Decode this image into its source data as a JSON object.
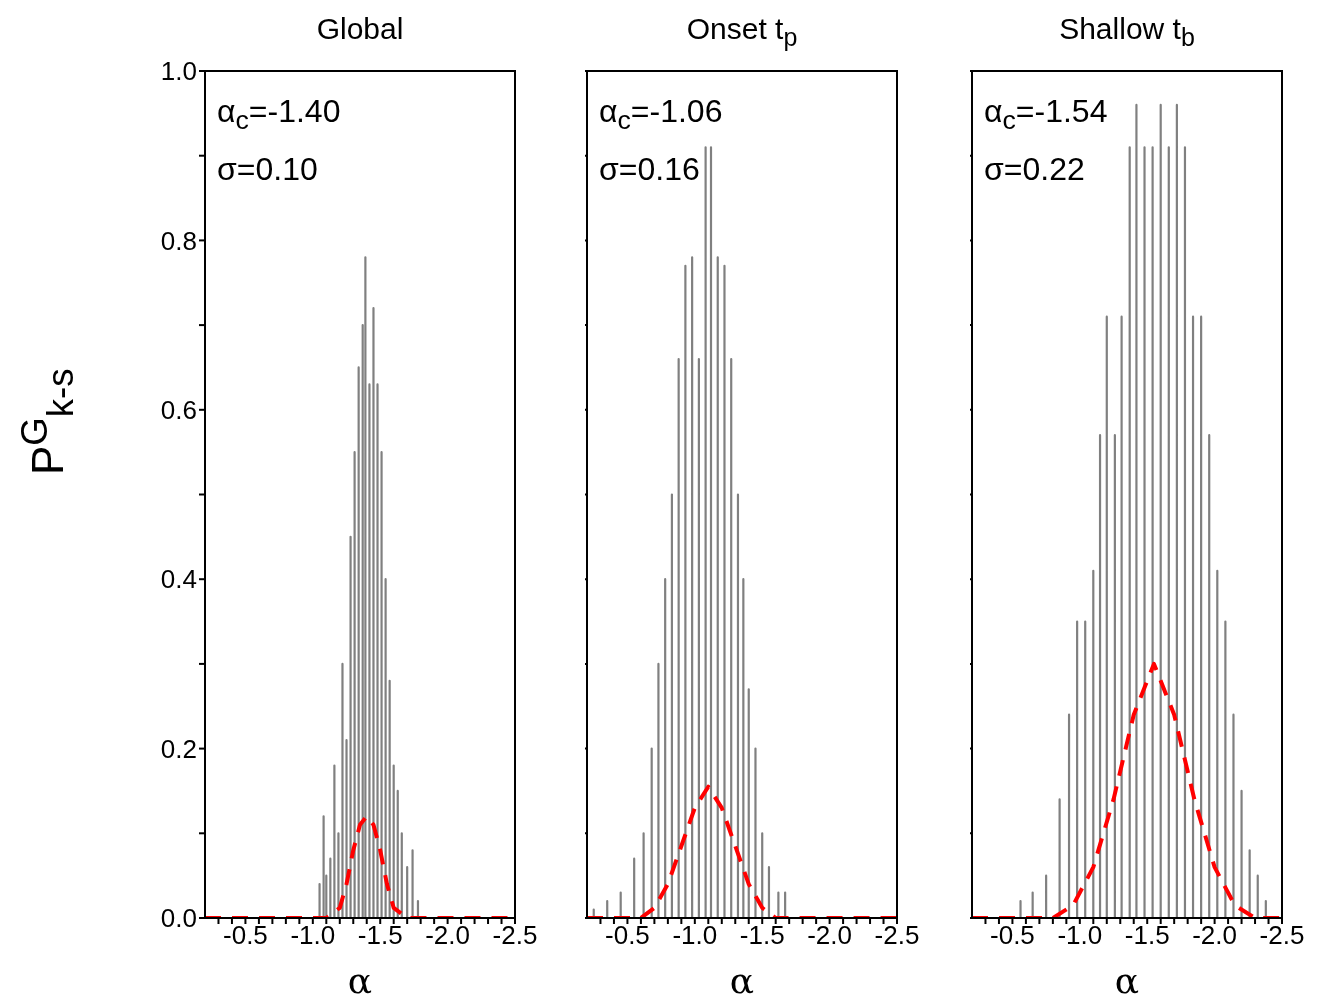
{
  "chart_data": [
    {
      "type": "line",
      "title": "Global",
      "xlabel": "α",
      "ylabel": "P$^{G}$$_{k-s}$",
      "annotations": [
        "α$_{c}$=-1.40",
        "σ=0.10"
      ],
      "xlim": [
        -0.2,
        -2.5
      ],
      "xticks": [
        {
          "value": -0.3,
          "label": null
        },
        {
          "value": -0.4,
          "label": null
        },
        {
          "value": -0.5,
          "label": "-0.5"
        },
        {
          "value": -0.6,
          "label": null
        },
        {
          "value": -0.7,
          "label": null
        },
        {
          "value": -0.8,
          "label": null
        },
        {
          "value": -0.9,
          "label": null
        },
        {
          "value": -1.0,
          "label": "-1.0"
        },
        {
          "value": -1.1,
          "label": null
        },
        {
          "value": -1.2,
          "label": null
        },
        {
          "value": -1.3,
          "label": null
        },
        {
          "value": -1.4,
          "label": null
        },
        {
          "value": -1.5,
          "label": "-1.5"
        },
        {
          "value": -1.6,
          "label": null
        },
        {
          "value": -1.7,
          "label": null
        },
        {
          "value": -1.8,
          "label": null
        },
        {
          "value": -1.9,
          "label": null
        },
        {
          "value": -2.0,
          "label": "-2.0"
        },
        {
          "value": -2.1,
          "label": null
        },
        {
          "value": -2.2,
          "label": null
        },
        {
          "value": -2.3,
          "label": null
        },
        {
          "value": -2.4,
          "label": null
        },
        {
          "value": -2.5,
          "label": "-2.5"
        }
      ],
      "ylim": [
        0,
        1
      ],
      "yticks": [
        {
          "value": 0,
          "label": "0.0"
        },
        {
          "value": 0.1,
          "label": null
        },
        {
          "value": 0.2,
          "label": "0.2"
        },
        {
          "value": 0.3,
          "label": null
        },
        {
          "value": 0.4,
          "label": "0.4"
        },
        {
          "value": 0.5,
          "label": null
        },
        {
          "value": 0.6,
          "label": "0.6"
        },
        {
          "value": 0.7,
          "label": null
        },
        {
          "value": 0.8,
          "label": "0.8"
        },
        {
          "value": 0.9,
          "label": null
        },
        {
          "value": 1,
          "label": "1.0"
        }
      ],
      "series": [
        {
          "type": "line",
          "color": "#808080",
          "line_style": "solid",
          "x": [
            -1.05,
            -1.05,
            -1.05,
            -1.08,
            -1.08,
            -1.08,
            -1.1,
            -1.1,
            -1.1,
            -1.13,
            -1.13,
            -1.13,
            -1.16,
            -1.16,
            -1.16,
            -1.19,
            -1.19,
            -1.19,
            -1.22,
            -1.22,
            -1.22,
            -1.25,
            -1.25,
            -1.25,
            -1.28,
            -1.28,
            -1.28,
            -1.31,
            -1.31,
            -1.31,
            -1.34,
            -1.34,
            -1.34,
            -1.37,
            -1.37,
            -1.37,
            -1.39,
            -1.39,
            -1.39,
            -1.42,
            -1.42,
            -1.42,
            -1.45,
            -1.45,
            -1.45,
            -1.48,
            -1.48,
            -1.48,
            -1.51,
            -1.51,
            -1.51,
            -1.54,
            -1.54,
            -1.54,
            -1.57,
            -1.57,
            -1.57,
            -1.6,
            -1.6,
            -1.6,
            -1.63,
            -1.63,
            -1.63,
            -1.66,
            -1.66,
            -1.66,
            -1.7,
            -1.7,
            -1.7,
            -1.74,
            -1.74,
            -1.74,
            -1.78,
            -1.78,
            -1.78
          ],
          "values": [
            0,
            0.04,
            0,
            0,
            0.12,
            0,
            0,
            0.05,
            0,
            0,
            0.07,
            0,
            0,
            0.18,
            0,
            0,
            0.1,
            0,
            0,
            0.3,
            0,
            0,
            0.21,
            0,
            0,
            0.45,
            0,
            0,
            0.55,
            0,
            0,
            0.65,
            0,
            0,
            0.7,
            0,
            0,
            0.78,
            0,
            0,
            0.63,
            0,
            0,
            0.72,
            0,
            0,
            0.63,
            0,
            0,
            0.55,
            0,
            0,
            0.4,
            0,
            0,
            0.28,
            0,
            0,
            0.18,
            0,
            0,
            0.15,
            0,
            0,
            0.1,
            0,
            0,
            0.06,
            0,
            0,
            0.08,
            0,
            0,
            0.02,
            0
          ]
        },
        {
          "type": "line",
          "color": "#ff0000",
          "line_style": "dashed",
          "x": [
            -0.2,
            -1.1,
            -1.2,
            -1.25,
            -1.3,
            -1.35,
            -1.4,
            -1.45,
            -1.5,
            -1.55,
            -1.6,
            -1.7,
            -2.5
          ],
          "values": [
            0,
            0,
            0.012,
            0.04,
            0.08,
            0.11,
            0.12,
            0.11,
            0.08,
            0.04,
            0.012,
            0,
            0
          ]
        }
      ]
    },
    {
      "type": "line",
      "title": "Onset t$_{p}$",
      "xlabel": "α",
      "annotations": [
        "α$_{c}$=-1.06",
        "σ=0.16"
      ],
      "tick_labels": "x",
      "xlim": [
        -0.2,
        -2.5
      ],
      "xticks": [
        {
          "value": -0.3,
          "label": null
        },
        {
          "value": -0.4,
          "label": null
        },
        {
          "value": -0.5,
          "label": "-0.5"
        },
        {
          "value": -0.6,
          "label": null
        },
        {
          "value": -0.7,
          "label": null
        },
        {
          "value": -0.8,
          "label": null
        },
        {
          "value": -0.9,
          "label": null
        },
        {
          "value": -1.0,
          "label": "-1.0"
        },
        {
          "value": -1.1,
          "label": null
        },
        {
          "value": -1.2,
          "label": null
        },
        {
          "value": -1.3,
          "label": null
        },
        {
          "value": -1.4,
          "label": null
        },
        {
          "value": -1.5,
          "label": "-1.5"
        },
        {
          "value": -1.6,
          "label": null
        },
        {
          "value": -1.7,
          "label": null
        },
        {
          "value": -1.8,
          "label": null
        },
        {
          "value": -1.9,
          "label": null
        },
        {
          "value": -2.0,
          "label": "-2.0"
        },
        {
          "value": -2.1,
          "label": null
        },
        {
          "value": -2.2,
          "label": null
        },
        {
          "value": -2.3,
          "label": null
        },
        {
          "value": -2.4,
          "label": null
        },
        {
          "value": -2.5,
          "label": "-2.5"
        }
      ],
      "ylim": [
        0,
        1
      ],
      "yticks": [
        {
          "value": 0,
          "label": null
        },
        {
          "value": 0.1,
          "label": null
        },
        {
          "value": 0.2,
          "label": null
        },
        {
          "value": 0.3,
          "label": null
        },
        {
          "value": 0.4,
          "label": null
        },
        {
          "value": 0.5,
          "label": null
        },
        {
          "value": 0.6,
          "label": null
        },
        {
          "value": 0.7,
          "label": null
        },
        {
          "value": 0.8,
          "label": null
        },
        {
          "value": 0.9,
          "label": null
        },
        {
          "value": 1,
          "label": null
        }
      ],
      "series": [
        {
          "type": "line",
          "color": "#808080",
          "line_style": "solid",
          "x": [
            -0.25,
            -0.25,
            -0.25,
            -0.35,
            -0.35,
            -0.35,
            -0.45,
            -0.45,
            -0.45,
            -0.55,
            -0.55,
            -0.55,
            -0.62,
            -0.62,
            -0.62,
            -0.68,
            -0.68,
            -0.68,
            -0.73,
            -0.73,
            -0.73,
            -0.78,
            -0.78,
            -0.78,
            -0.83,
            -0.83,
            -0.83,
            -0.88,
            -0.88,
            -0.88,
            -0.93,
            -0.93,
            -0.93,
            -0.98,
            -0.98,
            -0.98,
            -1.03,
            -1.03,
            -1.03,
            -1.08,
            -1.08,
            -1.08,
            -1.12,
            -1.12,
            -1.12,
            -1.17,
            -1.17,
            -1.17,
            -1.22,
            -1.22,
            -1.22,
            -1.27,
            -1.27,
            -1.27,
            -1.32,
            -1.32,
            -1.32,
            -1.36,
            -1.36,
            -1.36,
            -1.4,
            -1.4,
            -1.4,
            -1.45,
            -1.45,
            -1.45,
            -1.5,
            -1.5,
            -1.5,
            -1.55,
            -1.55,
            -1.55,
            -1.62,
            -1.62,
            -1.62,
            -1.67,
            -1.67,
            -1.67
          ],
          "values": [
            0,
            0.01,
            0,
            0,
            0.02,
            0,
            0,
            0.03,
            0,
            0,
            0.07,
            0,
            0,
            0.1,
            0,
            0,
            0.2,
            0,
            0,
            0.3,
            0,
            0,
            0.4,
            0,
            0,
            0.5,
            0,
            0,
            0.66,
            0,
            0,
            0.77,
            0,
            0,
            0.78,
            0,
            0,
            0.66,
            0,
            0,
            0.91,
            0,
            0,
            0.91,
            0,
            0,
            0.78,
            0,
            0,
            0.77,
            0,
            0,
            0.66,
            0,
            0,
            0.5,
            0,
            0,
            0.4,
            0,
            0,
            0.27,
            0,
            0,
            0.2,
            0,
            0,
            0.1,
            0,
            0,
            0.06,
            0,
            0,
            0.03,
            0,
            0,
            0.03,
            0
          ]
        },
        {
          "type": "line",
          "color": "#ff0000",
          "line_style": "dashed",
          "x": [
            -0.2,
            -0.6,
            -0.7,
            -0.8,
            -0.9,
            -1.0,
            -1.1,
            -1.2,
            -1.3,
            -1.4,
            -1.5,
            -1.6,
            -2.5
          ],
          "values": [
            0,
            0,
            0.012,
            0.04,
            0.085,
            0.13,
            0.155,
            0.13,
            0.085,
            0.04,
            0.012,
            0,
            0
          ]
        }
      ]
    },
    {
      "type": "line",
      "title": "Shallow t$_{b}$",
      "xlabel": "α",
      "annotations": [
        "α$_{c}$=-1.54",
        "σ=0.22"
      ],
      "tick_labels": "x",
      "xlim": [
        -0.2,
        -2.5
      ],
      "xticks": [
        {
          "value": -0.3,
          "label": null
        },
        {
          "value": -0.4,
          "label": null
        },
        {
          "value": -0.5,
          "label": "-0.5"
        },
        {
          "value": -0.6,
          "label": null
        },
        {
          "value": -0.7,
          "label": null
        },
        {
          "value": -0.8,
          "label": null
        },
        {
          "value": -0.9,
          "label": null
        },
        {
          "value": -1.0,
          "label": "-1.0"
        },
        {
          "value": -1.1,
          "label": null
        },
        {
          "value": -1.2,
          "label": null
        },
        {
          "value": -1.3,
          "label": null
        },
        {
          "value": -1.4,
          "label": null
        },
        {
          "value": -1.5,
          "label": "-1.5"
        },
        {
          "value": -1.6,
          "label": null
        },
        {
          "value": -1.7,
          "label": null
        },
        {
          "value": -1.8,
          "label": null
        },
        {
          "value": -1.9,
          "label": null
        },
        {
          "value": -2.0,
          "label": "-2.0"
        },
        {
          "value": -2.1,
          "label": null
        },
        {
          "value": -2.2,
          "label": null
        },
        {
          "value": -2.3,
          "label": null
        },
        {
          "value": -2.4,
          "label": null
        },
        {
          "value": -2.5,
          "label": "-2.5"
        }
      ],
      "ylim": [
        0,
        1
      ],
      "yticks": [
        {
          "value": 0,
          "label": null
        },
        {
          "value": 0.1,
          "label": null
        },
        {
          "value": 0.2,
          "label": null
        },
        {
          "value": 0.3,
          "label": null
        },
        {
          "value": 0.4,
          "label": null
        },
        {
          "value": 0.5,
          "label": null
        },
        {
          "value": 0.6,
          "label": null
        },
        {
          "value": 0.7,
          "label": null
        },
        {
          "value": 0.8,
          "label": null
        },
        {
          "value": 0.9,
          "label": null
        },
        {
          "value": 1,
          "label": null
        }
      ],
      "series": [
        {
          "type": "line",
          "color": "#808080",
          "line_style": "solid",
          "x": [
            -0.56,
            -0.56,
            -0.56,
            -0.65,
            -0.65,
            -0.65,
            -0.75,
            -0.75,
            -0.75,
            -0.85,
            -0.85,
            -0.85,
            -0.92,
            -0.92,
            -0.92,
            -0.98,
            -0.98,
            -0.98,
            -1.04,
            -1.04,
            -1.04,
            -1.1,
            -1.1,
            -1.1,
            -1.15,
            -1.15,
            -1.15,
            -1.2,
            -1.2,
            -1.2,
            -1.26,
            -1.26,
            -1.26,
            -1.31,
            -1.31,
            -1.31,
            -1.37,
            -1.37,
            -1.37,
            -1.42,
            -1.42,
            -1.42,
            -1.48,
            -1.48,
            -1.48,
            -1.54,
            -1.54,
            -1.54,
            -1.6,
            -1.6,
            -1.6,
            -1.66,
            -1.66,
            -1.66,
            -1.72,
            -1.72,
            -1.72,
            -1.78,
            -1.78,
            -1.78,
            -1.84,
            -1.84,
            -1.84,
            -1.9,
            -1.9,
            -1.9,
            -1.96,
            -1.96,
            -1.96,
            -2.02,
            -2.02,
            -2.02,
            -2.08,
            -2.08,
            -2.08,
            -2.14,
            -2.14,
            -2.14,
            -2.2,
            -2.2,
            -2.2,
            -2.26,
            -2.26,
            -2.26,
            -2.32,
            -2.32,
            -2.32,
            -2.38,
            -2.38,
            -2.38
          ],
          "values": [
            0,
            0.02,
            0,
            0,
            0.03,
            0,
            0,
            0.05,
            0,
            0,
            0.14,
            0,
            0,
            0.24,
            0,
            0,
            0.35,
            0,
            0,
            0.35,
            0,
            0,
            0.41,
            0,
            0,
            0.57,
            0,
            0,
            0.71,
            0,
            0,
            0.57,
            0,
            0,
            0.71,
            0,
            0,
            0.91,
            0,
            0,
            0.96,
            0,
            0,
            0.91,
            0,
            0,
            0.91,
            0,
            0,
            0.96,
            0,
            0,
            0.91,
            0,
            0,
            0.96,
            0,
            0,
            0.91,
            0,
            0,
            0.71,
            0,
            0,
            0.71,
            0,
            0,
            0.57,
            0,
            0,
            0.41,
            0,
            0,
            0.35,
            0,
            0,
            0.24,
            0,
            0,
            0.15,
            0,
            0,
            0.08,
            0,
            0,
            0.05,
            0,
            0,
            0.02,
            0
          ]
        },
        {
          "type": "line",
          "color": "#ff0000",
          "line_style": "dashed",
          "x": [
            -0.2,
            -0.8,
            -0.95,
            -1.1,
            -1.25,
            -1.4,
            -1.55,
            -1.7,
            -1.85,
            -2.0,
            -2.15,
            -2.3,
            -2.5
          ],
          "values": [
            0,
            0,
            0.015,
            0.06,
            0.14,
            0.24,
            0.3,
            0.24,
            0.14,
            0.06,
            0.015,
            0,
            0
          ]
        }
      ]
    }
  ]
}
